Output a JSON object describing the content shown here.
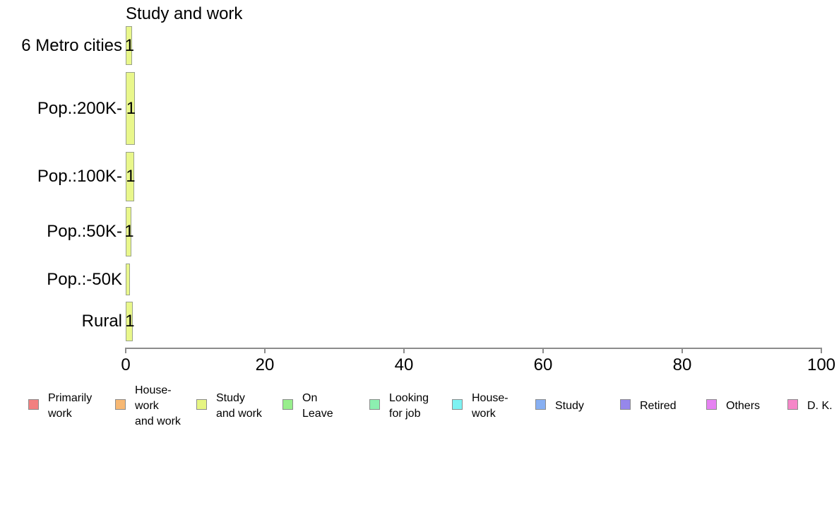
{
  "title": "Study and work",
  "chart_data": {
    "type": "bar",
    "orientation": "horizontal",
    "title": "Study and work",
    "categories": [
      "6 Metro cities",
      "Pop.:200K-",
      "Pop.:100K-",
      "Pop.:50K-",
      "Pop.:-50K",
      "Rural"
    ],
    "values": [
      0.9,
      1.3,
      1.2,
      0.8,
      0.6,
      1.0
    ],
    "bar_labels": [
      "1",
      "1",
      "1",
      "1",
      "",
      "1"
    ],
    "xlim": [
      0,
      100
    ],
    "xticks": [
      0,
      20,
      40,
      60,
      80,
      100
    ],
    "bar_color": "#e9f78b",
    "bar_border_color": "#9aa28a",
    "axis_color": "#8c8c8c",
    "grid": false,
    "legend_position": "bottom"
  },
  "legend": {
    "items": [
      {
        "label": "Primarily work",
        "lines": [
          "Primarily",
          "work"
        ],
        "color": "#f28080"
      },
      {
        "label": "House-work and work",
        "lines": [
          "House-",
          "work",
          "and work"
        ],
        "color": "#f7b873"
      },
      {
        "label": "Study and work",
        "lines": [
          "Study",
          "and work"
        ],
        "color": "#e6f582"
      },
      {
        "label": "On Leave",
        "lines": [
          "On",
          "Leave"
        ],
        "color": "#98ee8c"
      },
      {
        "label": "Looking for job",
        "lines": [
          "Looking",
          "for job"
        ],
        "color": "#8cf0b0"
      },
      {
        "label": "House-work",
        "lines": [
          "House-",
          "work"
        ],
        "color": "#7df2f2"
      },
      {
        "label": "Study",
        "lines": [
          "Study"
        ],
        "color": "#87aff2"
      },
      {
        "label": "Retired",
        "lines": [
          "Retired"
        ],
        "color": "#9687eb"
      },
      {
        "label": "Others",
        "lines": [
          "Others"
        ],
        "color": "#e682f2"
      },
      {
        "label": "D. K.",
        "lines": [
          "D. K."
        ],
        "color": "#f587c8"
      }
    ]
  }
}
